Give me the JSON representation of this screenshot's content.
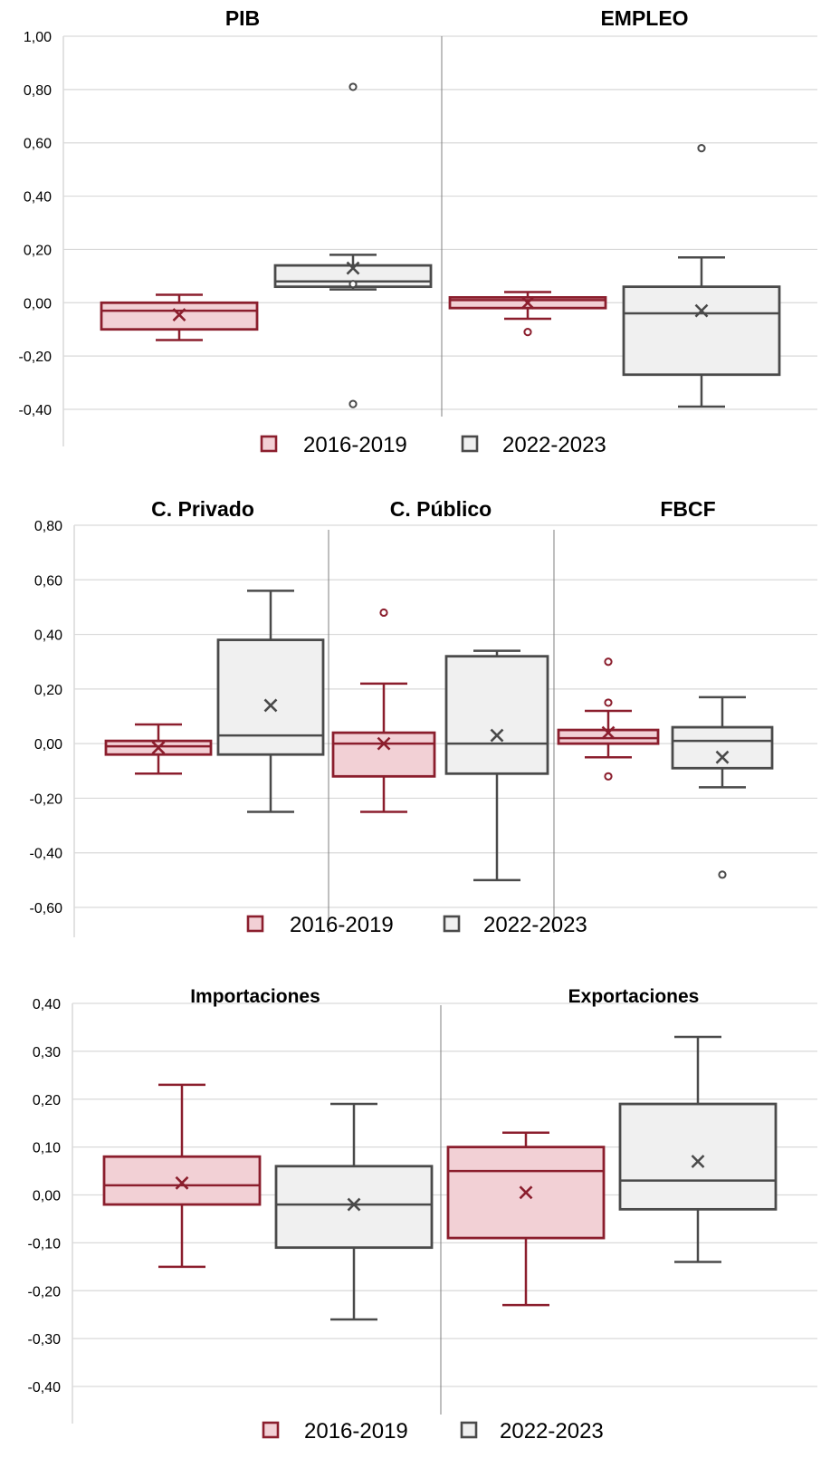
{
  "colors": {
    "2016-2019": {
      "stroke": "#8b1e2d",
      "fill": "#f2d0d5"
    },
    "2022-2023": {
      "stroke": "#4a4a4a",
      "fill": "#f0f0f0"
    },
    "grid": "#d9d9d9",
    "separator": "#7f7f7f"
  },
  "legend": {
    "series": [
      "2016-2019",
      "2022-2023"
    ]
  },
  "chart_data": [
    {
      "type": "boxplot",
      "ylim": [
        -0.4,
        1.0
      ],
      "y_ticks": [
        "1,00",
        "0,80",
        "0,60",
        "0,40",
        "0,20",
        "0,00",
        "-0,20",
        "-0,40"
      ],
      "grid": true,
      "legend_position": "bottom",
      "panels": [
        {
          "title": "PIB",
          "boxes": [
            {
              "series": "2016-2019",
              "whisker_low": -0.14,
              "q1": -0.1,
              "median": -0.03,
              "q3": 0.0,
              "whisker_high": 0.03,
              "mean": -0.045,
              "outliers": []
            },
            {
              "series": "2022-2023",
              "whisker_low": 0.05,
              "q1": 0.06,
              "median": 0.08,
              "q3": 0.14,
              "whisker_high": 0.18,
              "mean": 0.13,
              "outliers": [
                0.81,
                0.07,
                -0.38
              ]
            }
          ]
        },
        {
          "title": "EMPLEO",
          "boxes": [
            {
              "series": "2016-2019",
              "whisker_low": -0.06,
              "q1": -0.02,
              "median": 0.01,
              "q3": 0.02,
              "whisker_high": 0.04,
              "mean": 0.0,
              "outliers": [
                -0.11
              ]
            },
            {
              "series": "2022-2023",
              "whisker_low": -0.39,
              "q1": -0.27,
              "median": -0.04,
              "q3": 0.06,
              "whisker_high": 0.17,
              "mean": -0.03,
              "outliers": [
                0.58
              ]
            }
          ]
        }
      ]
    },
    {
      "type": "boxplot",
      "ylim": [
        -0.6,
        0.8
      ],
      "y_ticks": [
        "0,80",
        "0,60",
        "0,40",
        "0,20",
        "0,00",
        "-0,20",
        "-0,40",
        "-0,60"
      ],
      "grid": true,
      "legend_position": "bottom",
      "panels": [
        {
          "title": "C. Privado",
          "boxes": [
            {
              "series": "2016-2019",
              "whisker_low": -0.11,
              "q1": -0.04,
              "median": -0.01,
              "q3": 0.01,
              "whisker_high": 0.07,
              "mean": -0.015,
              "outliers": []
            },
            {
              "series": "2022-2023",
              "whisker_low": -0.25,
              "q1": -0.04,
              "median": 0.03,
              "q3": 0.38,
              "whisker_high": 0.56,
              "mean": 0.14,
              "outliers": []
            }
          ]
        },
        {
          "title": "C. Público",
          "boxes": [
            {
              "series": "2016-2019",
              "whisker_low": -0.25,
              "q1": -0.12,
              "median": -0.0,
              "q3": 0.04,
              "whisker_high": 0.22,
              "mean": 0.0,
              "outliers": [
                0.48
              ]
            },
            {
              "series": "2022-2023",
              "whisker_low": -0.5,
              "q1": -0.11,
              "median": 0.0,
              "q3": 0.32,
              "whisker_high": 0.34,
              "mean": 0.03,
              "outliers": []
            }
          ]
        },
        {
          "title": "FBCF",
          "boxes": [
            {
              "series": "2016-2019",
              "whisker_low": -0.05,
              "q1": 0.0,
              "median": 0.02,
              "q3": 0.05,
              "whisker_high": 0.12,
              "mean": 0.04,
              "outliers": [
                0.3,
                0.15,
                -0.12
              ]
            },
            {
              "series": "2022-2023",
              "whisker_low": -0.16,
              "q1": -0.09,
              "median": 0.01,
              "q3": 0.06,
              "whisker_high": 0.17,
              "mean": -0.05,
              "outliers": [
                -0.48
              ]
            }
          ]
        }
      ]
    },
    {
      "type": "boxplot",
      "ylim": [
        -0.4,
        0.4
      ],
      "y_ticks": [
        "0,40",
        "0,30",
        "0,20",
        "0,10",
        "0,00",
        "-0,10",
        "-0,20",
        "-0,30",
        "-0,40"
      ],
      "grid": true,
      "legend_position": "bottom",
      "panels": [
        {
          "title": "Importaciones",
          "boxes": [
            {
              "series": "2016-2019",
              "whisker_low": -0.15,
              "q1": -0.02,
              "median": 0.02,
              "q3": 0.08,
              "whisker_high": 0.23,
              "mean": 0.025,
              "outliers": []
            },
            {
              "series": "2022-2023",
              "whisker_low": -0.26,
              "q1": -0.11,
              "median": -0.02,
              "q3": 0.06,
              "whisker_high": 0.19,
              "mean": -0.02,
              "outliers": []
            }
          ]
        },
        {
          "title": "Exportaciones",
          "boxes": [
            {
              "series": "2016-2019",
              "whisker_low": -0.23,
              "q1": -0.09,
              "median": 0.05,
              "q3": 0.1,
              "whisker_high": 0.13,
              "mean": 0.005,
              "outliers": []
            },
            {
              "series": "2022-2023",
              "whisker_low": -0.14,
              "q1": -0.03,
              "median": 0.03,
              "q3": 0.19,
              "whisker_high": 0.33,
              "mean": 0.07,
              "outliers": []
            }
          ]
        }
      ]
    }
  ]
}
